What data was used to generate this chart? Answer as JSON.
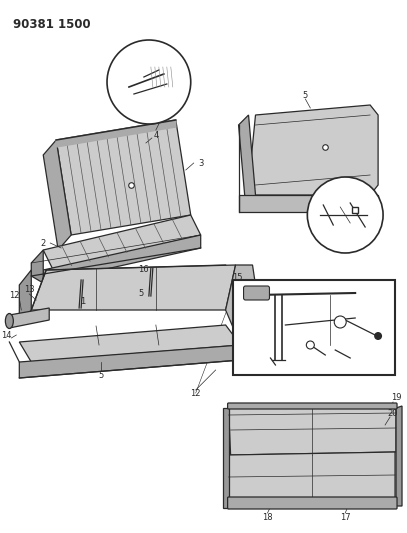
{
  "title": "90381 1500",
  "bg_color": "#ffffff",
  "line_color": "#2a2a2a",
  "figsize": [
    4.07,
    5.33
  ],
  "dpi": 100,
  "title_fontsize": 8.5,
  "label_fontsize": 6.0
}
